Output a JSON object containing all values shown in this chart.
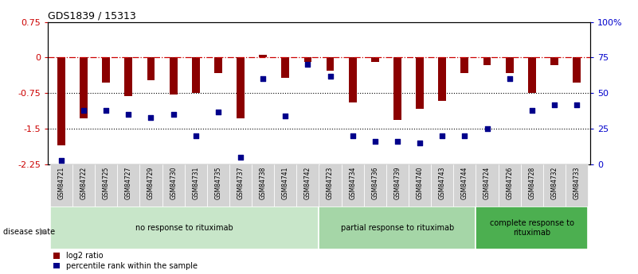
{
  "title": "GDS1839 / 15313",
  "samples": [
    "GSM84721",
    "GSM84722",
    "GSM84725",
    "GSM84727",
    "GSM84729",
    "GSM84730",
    "GSM84731",
    "GSM84735",
    "GSM84737",
    "GSM84738",
    "GSM84741",
    "GSM84742",
    "GSM84723",
    "GSM84734",
    "GSM84736",
    "GSM84739",
    "GSM84740",
    "GSM84743",
    "GSM84744",
    "GSM84724",
    "GSM84726",
    "GSM84728",
    "GSM84732",
    "GSM84733"
  ],
  "log2_ratio": [
    -1.85,
    -1.28,
    -0.52,
    -0.82,
    -0.48,
    -0.78,
    -0.75,
    -0.32,
    -1.28,
    0.06,
    -0.42,
    -0.1,
    -0.28,
    -0.95,
    -0.1,
    -1.32,
    -1.08,
    -0.92,
    -0.32,
    -0.16,
    -0.32,
    -0.75,
    -0.16,
    -0.52
  ],
  "percentile": [
    3,
    38,
    38,
    35,
    33,
    35,
    20,
    37,
    5,
    60,
    34,
    70,
    62,
    20,
    16,
    16,
    15,
    20,
    20,
    25,
    60,
    38,
    42,
    42
  ],
  "groups": [
    {
      "label": "no response to rituximab",
      "start": 0,
      "end": 12,
      "color": "#c8e6c9"
    },
    {
      "label": "partial response to rituximab",
      "start": 12,
      "end": 19,
      "color": "#a5d6a7"
    },
    {
      "label": "complete response to\nrituximab",
      "start": 19,
      "end": 24,
      "color": "#4caf50"
    }
  ],
  "bar_color": "#8b0000",
  "dot_color": "#00008b",
  "ylim_left": [
    -2.25,
    0.75
  ],
  "ylim_right": [
    0,
    100
  ],
  "yticks_left": [
    0.75,
    0,
    -0.75,
    -1.5,
    -2.25
  ],
  "yticks_right": [
    100,
    75,
    50,
    25,
    0
  ],
  "ytick_labels_left": [
    "0.75",
    "0",
    "-0.75",
    "-1.5",
    "-2.25"
  ],
  "ytick_labels_right": [
    "100%",
    "75",
    "50",
    "25",
    "0"
  ],
  "dotline_y": [
    -0.75,
    -1.5
  ],
  "bar_width": 0.35,
  "legend_labels": [
    "log2 ratio",
    "percentile rank within the sample"
  ]
}
